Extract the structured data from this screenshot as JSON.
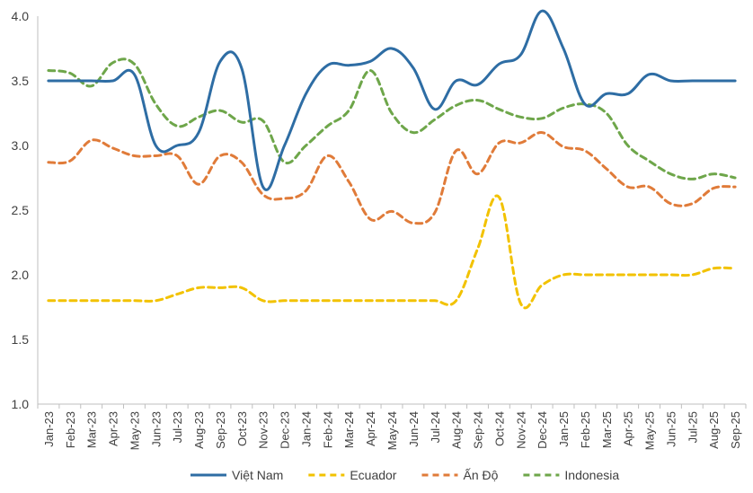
{
  "chart_data": {
    "type": "line",
    "title": "",
    "xlabel": "",
    "ylabel": "",
    "ylim": [
      1.0,
      4.0
    ],
    "yticks": [
      "1.0",
      "1.5",
      "2.0",
      "2.5",
      "3.0",
      "3.5",
      "4.0"
    ],
    "grid": false,
    "legend_position": "bottom-center",
    "categories": [
      "Jan-23",
      "Feb-23",
      "Mar-23",
      "Apr-23",
      "May-23",
      "Jun-23",
      "Jul-23",
      "Aug-23",
      "Sep-23",
      "Oct-23",
      "Nov-23",
      "Dec-23",
      "Jan-24",
      "Feb-24",
      "Mar-24",
      "Apr-24",
      "May-24",
      "Jun-24",
      "Jul-24",
      "Aug-24",
      "Sep-24",
      "Oct-24",
      "Nov-24",
      "Dec-24",
      "Jan-25",
      "Feb-25",
      "Mar-25",
      "Apr-25",
      "May-25",
      "Jun-25",
      "Jul-25",
      "Aug-25",
      "Sep-25"
    ],
    "series": [
      {
        "name": "Việt Nam",
        "color": "#2E6DA4",
        "style": "solid",
        "values": [
          3.5,
          3.5,
          3.5,
          3.5,
          3.55,
          3.0,
          3.0,
          3.1,
          3.65,
          3.6,
          2.68,
          3.0,
          3.4,
          3.62,
          3.62,
          3.65,
          3.75,
          3.6,
          3.28,
          3.5,
          3.47,
          3.63,
          3.7,
          4.04,
          3.75,
          3.32,
          3.4,
          3.4,
          3.55,
          3.5,
          3.5,
          3.5,
          3.5
        ]
      },
      {
        "name": "Ecuador",
        "color": "#F2C200",
        "style": "dashed",
        "values": [
          1.8,
          1.8,
          1.8,
          1.8,
          1.8,
          1.8,
          1.85,
          1.9,
          1.9,
          1.9,
          1.8,
          1.8,
          1.8,
          1.8,
          1.8,
          1.8,
          1.8,
          1.8,
          1.8,
          1.8,
          2.2,
          2.6,
          1.78,
          1.92,
          2.0,
          2.0,
          2.0,
          2.0,
          2.0,
          2.0,
          2.0,
          2.05,
          2.05
        ]
      },
      {
        "name": "Ấn Độ",
        "color": "#E07B39",
        "style": "dashed",
        "values": [
          2.87,
          2.88,
          3.04,
          2.98,
          2.92,
          2.92,
          2.92,
          2.7,
          2.92,
          2.87,
          2.62,
          2.59,
          2.65,
          2.92,
          2.72,
          2.43,
          2.49,
          2.4,
          2.48,
          2.96,
          2.78,
          3.02,
          3.02,
          3.1,
          2.99,
          2.96,
          2.82,
          2.68,
          2.68,
          2.55,
          2.55,
          2.67,
          2.68
        ]
      },
      {
        "name": "Indonesia",
        "color": "#6EA64A",
        "style": "dashed",
        "values": [
          3.58,
          3.56,
          3.46,
          3.64,
          3.63,
          3.32,
          3.15,
          3.22,
          3.27,
          3.18,
          3.19,
          2.87,
          3.0,
          3.15,
          3.27,
          3.58,
          3.25,
          3.1,
          3.2,
          3.31,
          3.35,
          3.28,
          3.22,
          3.21,
          3.29,
          3.32,
          3.25,
          3.0,
          2.88,
          2.78,
          2.74,
          2.78,
          2.75
        ]
      }
    ]
  }
}
